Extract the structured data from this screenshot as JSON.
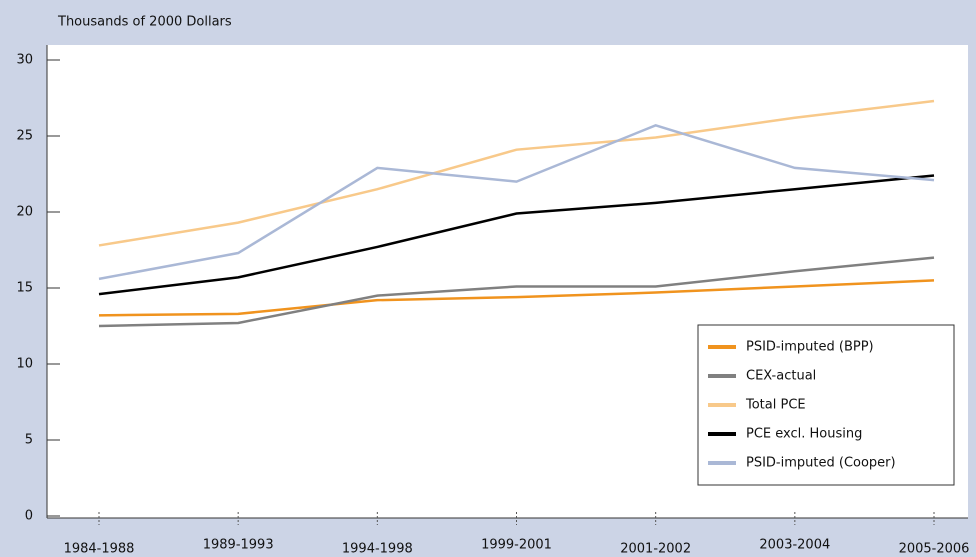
{
  "chart_data": {
    "type": "line",
    "y_label": "Thousands of 2000 Dollars",
    "categories": [
      "1984-1988",
      "1989-1993",
      "1994-1998",
      "1999-2001",
      "2001-2002",
      "2003-2004",
      "2005-2006"
    ],
    "series": [
      {
        "name": "PSID-imputed (BPP)",
        "color": "#f0931e",
        "values": [
          13.2,
          13.3,
          14.2,
          14.4,
          14.7,
          15.1,
          15.5
        ]
      },
      {
        "name": "CEX-actual",
        "color": "#808080",
        "values": [
          12.5,
          12.7,
          14.5,
          15.1,
          15.1,
          16.1,
          17.0
        ]
      },
      {
        "name": "Total PCE",
        "color": "#f8c98a",
        "values": [
          17.8,
          19.3,
          21.5,
          24.1,
          24.9,
          26.2,
          27.3
        ]
      },
      {
        "name": "PCE excl. Housing",
        "color": "#000000",
        "values": [
          14.6,
          15.7,
          17.7,
          19.9,
          20.6,
          21.5,
          22.4
        ]
      },
      {
        "name": "PSID-imputed (Cooper)",
        "color": "#aab8d6",
        "values": [
          15.6,
          17.3,
          22.9,
          22.0,
          25.7,
          22.9,
          22.1
        ]
      }
    ],
    "ylim": [
      0,
      30
    ],
    "yticks": [
      0,
      5,
      10,
      15,
      20,
      25,
      30
    ],
    "legend": "lower right"
  }
}
